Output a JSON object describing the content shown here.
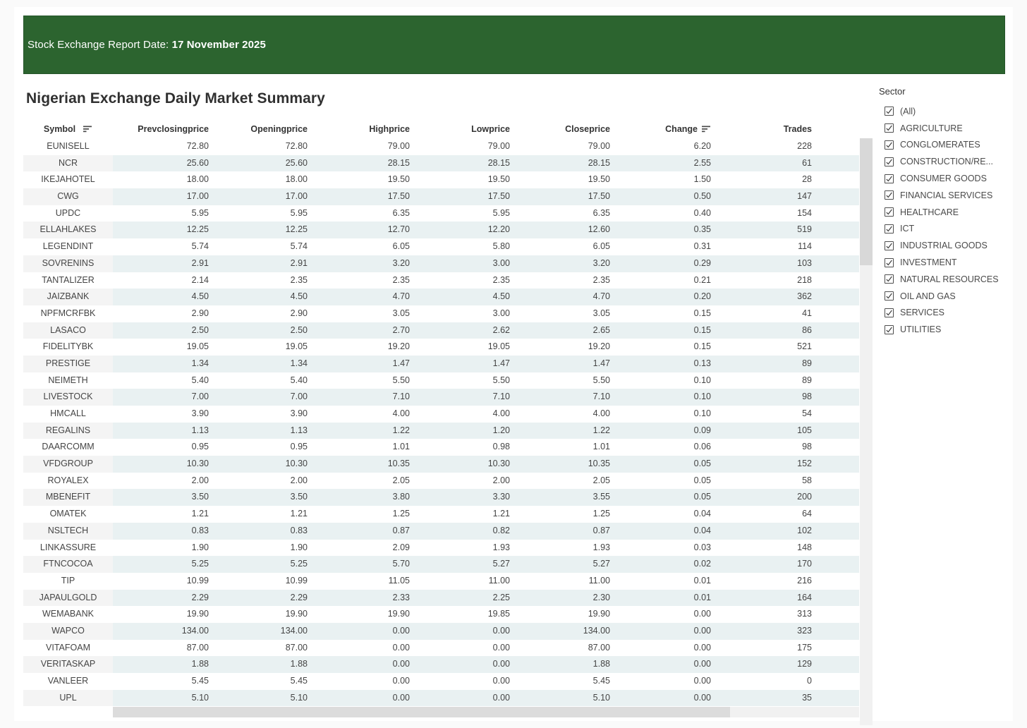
{
  "banner": {
    "label": "Stock Exchange Report Date: ",
    "date": "17 November 2025",
    "background_color": "#2c642f"
  },
  "title": "Nigerian Exchange Daily Market Summary",
  "table": {
    "columns": [
      {
        "label": "Symbol",
        "sort_icon": "sort-descending"
      },
      {
        "label": "Prevclosingprice"
      },
      {
        "label": "Openingprice"
      },
      {
        "label": "Highprice"
      },
      {
        "label": "Lowprice"
      },
      {
        "label": "Closeprice"
      },
      {
        "label": "Change",
        "sort_icon": "sort-descending"
      },
      {
        "label": "Trades"
      }
    ],
    "rows": [
      [
        "EUNISELL",
        "72.80",
        "72.80",
        "79.00",
        "79.00",
        "79.00",
        "6.20",
        "228"
      ],
      [
        "NCR",
        "25.60",
        "25.60",
        "28.15",
        "28.15",
        "28.15",
        "2.55",
        "61"
      ],
      [
        "IKEJAHOTEL",
        "18.00",
        "18.00",
        "19.50",
        "19.50",
        "19.50",
        "1.50",
        "28"
      ],
      [
        "CWG",
        "17.00",
        "17.00",
        "17.50",
        "17.50",
        "17.50",
        "0.50",
        "147"
      ],
      [
        "UPDC",
        "5.95",
        "5.95",
        "6.35",
        "5.95",
        "6.35",
        "0.40",
        "154"
      ],
      [
        "ELLAHLAKES",
        "12.25",
        "12.25",
        "12.70",
        "12.20",
        "12.60",
        "0.35",
        "519"
      ],
      [
        "LEGENDINT",
        "5.74",
        "5.74",
        "6.05",
        "5.80",
        "6.05",
        "0.31",
        "114"
      ],
      [
        "SOVRENINS",
        "2.91",
        "2.91",
        "3.20",
        "3.00",
        "3.20",
        "0.29",
        "103"
      ],
      [
        "TANTALIZER",
        "2.14",
        "2.35",
        "2.35",
        "2.35",
        "2.35",
        "0.21",
        "218"
      ],
      [
        "JAIZBANK",
        "4.50",
        "4.50",
        "4.70",
        "4.50",
        "4.70",
        "0.20",
        "362"
      ],
      [
        "NPFMCRFBK",
        "2.90",
        "2.90",
        "3.05",
        "3.00",
        "3.05",
        "0.15",
        "41"
      ],
      [
        "LASACO",
        "2.50",
        "2.50",
        "2.70",
        "2.62",
        "2.65",
        "0.15",
        "86"
      ],
      [
        "FIDELITYBK",
        "19.05",
        "19.05",
        "19.20",
        "19.05",
        "19.20",
        "0.15",
        "521"
      ],
      [
        "PRESTIGE",
        "1.34",
        "1.34",
        "1.47",
        "1.47",
        "1.47",
        "0.13",
        "89"
      ],
      [
        "NEIMETH",
        "5.40",
        "5.40",
        "5.50",
        "5.50",
        "5.50",
        "0.10",
        "89"
      ],
      [
        "LIVESTOCK",
        "7.00",
        "7.00",
        "7.10",
        "7.10",
        "7.10",
        "0.10",
        "98"
      ],
      [
        "HMCALL",
        "3.90",
        "3.90",
        "4.00",
        "4.00",
        "4.00",
        "0.10",
        "54"
      ],
      [
        "REGALINS",
        "1.13",
        "1.13",
        "1.22",
        "1.20",
        "1.22",
        "0.09",
        "105"
      ],
      [
        "DAARCOMM",
        "0.95",
        "0.95",
        "1.01",
        "0.98",
        "1.01",
        "0.06",
        "98"
      ],
      [
        "VFDGROUP",
        "10.30",
        "10.30",
        "10.35",
        "10.30",
        "10.35",
        "0.05",
        "152"
      ],
      [
        "ROYALEX",
        "2.00",
        "2.00",
        "2.05",
        "2.00",
        "2.05",
        "0.05",
        "58"
      ],
      [
        "MBENEFIT",
        "3.50",
        "3.50",
        "3.80",
        "3.30",
        "3.55",
        "0.05",
        "200"
      ],
      [
        "OMATEK",
        "1.21",
        "1.21",
        "1.25",
        "1.21",
        "1.25",
        "0.04",
        "64"
      ],
      [
        "NSLTECH",
        "0.83",
        "0.83",
        "0.87",
        "0.82",
        "0.87",
        "0.04",
        "102"
      ],
      [
        "LINKASSURE",
        "1.90",
        "1.90",
        "2.09",
        "1.93",
        "1.93",
        "0.03",
        "148"
      ],
      [
        "FTNCOCOA",
        "5.25",
        "5.25",
        "5.70",
        "5.27",
        "5.27",
        "0.02",
        "170"
      ],
      [
        "TIP",
        "10.99",
        "10.99",
        "11.05",
        "11.00",
        "11.00",
        "0.01",
        "216"
      ],
      [
        "JAPAULGOLD",
        "2.29",
        "2.29",
        "2.33",
        "2.25",
        "2.30",
        "0.01",
        "164"
      ],
      [
        "WEMABANK",
        "19.90",
        "19.90",
        "19.90",
        "19.85",
        "19.90",
        "0.00",
        "313"
      ],
      [
        "WAPCO",
        "134.00",
        "134.00",
        "0.00",
        "0.00",
        "134.00",
        "0.00",
        "323"
      ],
      [
        "VITAFOAM",
        "87.00",
        "87.00",
        "0.00",
        "0.00",
        "87.00",
        "0.00",
        "175"
      ],
      [
        "VERITASKAP",
        "1.88",
        "1.88",
        "0.00",
        "0.00",
        "1.88",
        "0.00",
        "129"
      ],
      [
        "VANLEER",
        "5.45",
        "5.45",
        "0.00",
        "0.00",
        "5.45",
        "0.00",
        "0"
      ],
      [
        "UPL",
        "5.10",
        "5.10",
        "0.00",
        "0.00",
        "5.10",
        "0.00",
        "35"
      ]
    ]
  },
  "filter": {
    "title": "Sector",
    "options": [
      "(All)",
      "AGRICULTURE",
      "CONGLOMERATES",
      "CONSTRUCTION/RE...",
      "CONSUMER GOODS",
      "FINANCIAL SERVICES",
      "HEALTHCARE",
      "ICT",
      "INDUSTRIAL GOODS",
      "INVESTMENT",
      "NATURAL RESOURCES",
      "OIL AND GAS",
      "SERVICES",
      "UTILITIES"
    ],
    "all_checked": true
  }
}
